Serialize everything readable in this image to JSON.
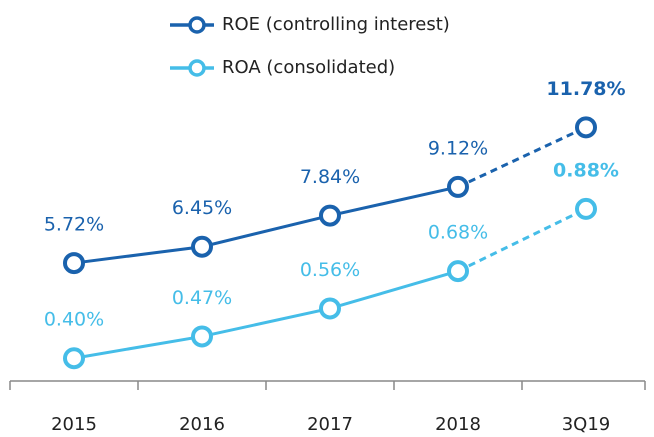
{
  "chart_data": {
    "type": "line",
    "categories": [
      "2015",
      "2016",
      "2017",
      "2018",
      "3Q19"
    ],
    "series": [
      {
        "name": "ROE (controlling interest)",
        "color": "#1a62ad",
        "axis": "y",
        "values": [
          5.72,
          6.45,
          7.84,
          9.12,
          11.78
        ],
        "value_labels": [
          "5.72%",
          "6.45%",
          "7.84%",
          "9.12%",
          "11.78%"
        ]
      },
      {
        "name": "ROA (consolidated)",
        "color": "#45bde8",
        "axis": "y2",
        "values": [
          0.4,
          0.47,
          0.56,
          0.68,
          0.88
        ],
        "value_labels": [
          "0.40%",
          "0.47%",
          "0.56%",
          "0.68%",
          "0.88%"
        ]
      }
    ],
    "ylim": [
      0.5,
      13
    ],
    "y2lim": [
      0.33,
      1.23
    ],
    "dash_last_segment": true,
    "legend": "top"
  }
}
